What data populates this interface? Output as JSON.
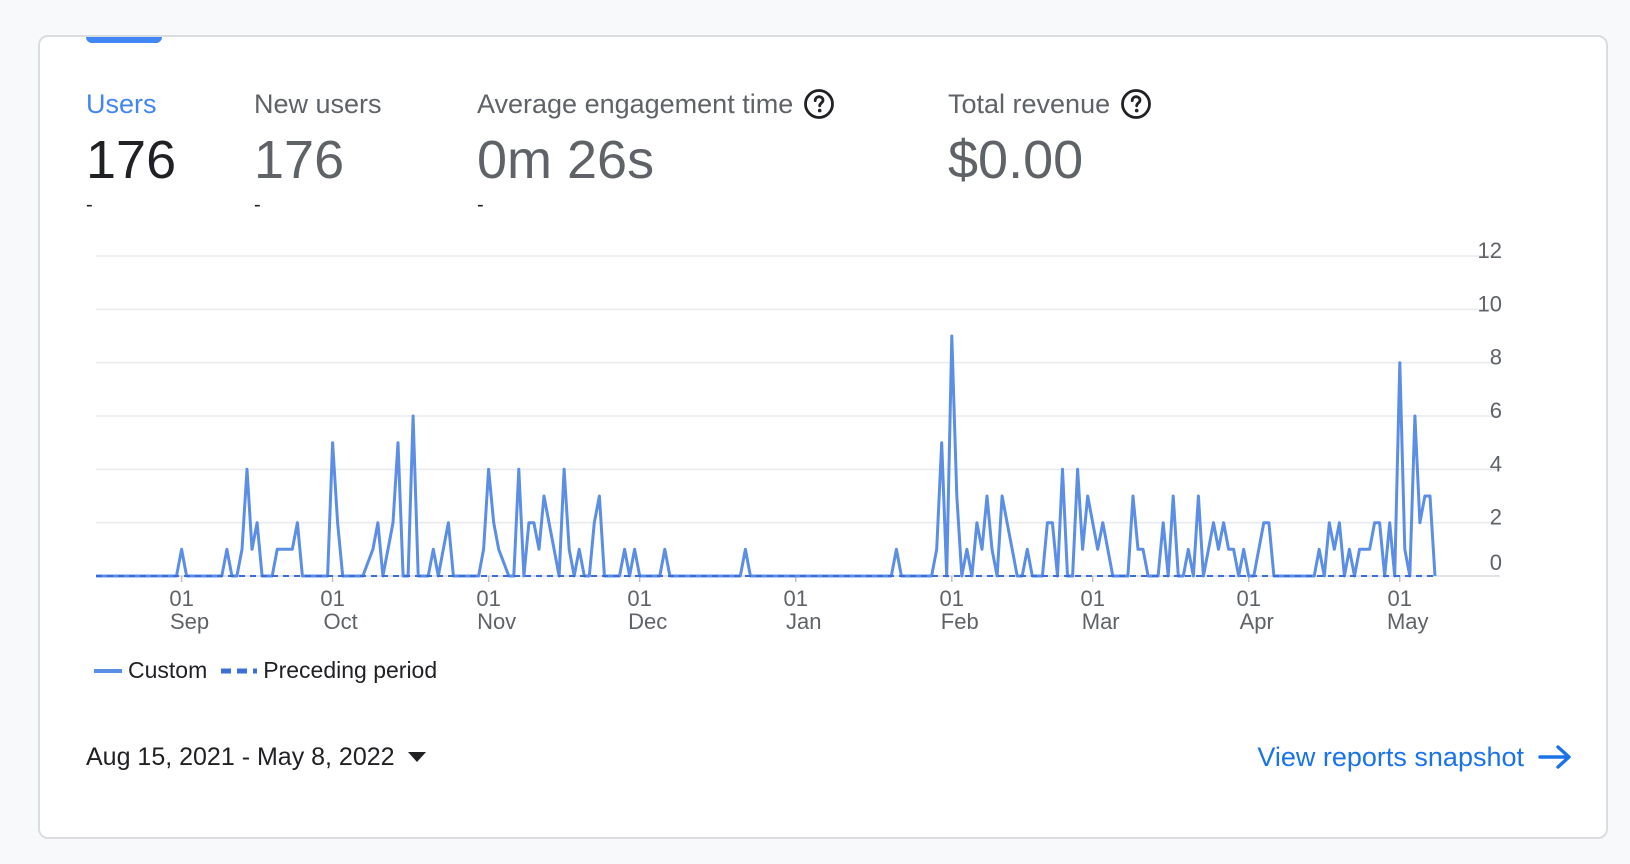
{
  "metrics": [
    {
      "label": "Users",
      "value": "176",
      "delta": "-",
      "help": false
    },
    {
      "label": "New users",
      "value": "176",
      "delta": "-",
      "help": false
    },
    {
      "label": "Average engagement time",
      "value": "0m 26s",
      "delta": "-",
      "help": true
    },
    {
      "label": "Total revenue",
      "value": "$0.00",
      "delta": "",
      "help": true
    }
  ],
  "legend": {
    "custom": "Custom",
    "preceding": "Preceding period"
  },
  "footer": {
    "date_range": "Aug 15, 2021 - May 8, 2022",
    "view_link": "View reports snapshot"
  },
  "colors": {
    "accent": "#4285f4",
    "link": "#1a73e8",
    "series": "#5b8ee6",
    "preceding": "#3b6fd6"
  },
  "icons": {
    "help": "help-circle-icon",
    "caret": "caret-down-icon",
    "arrow": "arrow-right-icon"
  },
  "chart_data": {
    "type": "line",
    "x_start": "2021-08-15",
    "x_end": "2022-05-08",
    "x_ticks": [
      {
        "date": "2021-09-01",
        "day": "01",
        "month": "Sep"
      },
      {
        "date": "2021-10-01",
        "day": "01",
        "month": "Oct"
      },
      {
        "date": "2021-11-01",
        "day": "01",
        "month": "Nov"
      },
      {
        "date": "2021-12-01",
        "day": "01",
        "month": "Dec"
      },
      {
        "date": "2022-01-01",
        "day": "01",
        "month": "Jan"
      },
      {
        "date": "2022-02-01",
        "day": "01",
        "month": "Feb"
      },
      {
        "date": "2022-03-01",
        "day": "01",
        "month": "Mar"
      },
      {
        "date": "2022-04-01",
        "day": "01",
        "month": "Apr"
      },
      {
        "date": "2022-05-01",
        "day": "01",
        "month": "May"
      }
    ],
    "y_ticks": [
      0,
      2,
      4,
      6,
      8,
      10,
      12
    ],
    "ylim": [
      0,
      12
    ],
    "grid": true,
    "legend_position": "bottom-left",
    "series": [
      {
        "name": "Custom",
        "style": "solid",
        "points": [
          [
            "2021-08-15",
            0
          ],
          [
            "2021-08-31",
            0
          ],
          [
            "2021-09-01",
            1
          ],
          [
            "2021-09-02",
            0
          ],
          [
            "2021-09-09",
            0
          ],
          [
            "2021-09-10",
            1
          ],
          [
            "2021-09-11",
            0
          ],
          [
            "2021-09-12",
            0
          ],
          [
            "2021-09-13",
            1
          ],
          [
            "2021-09-14",
            4
          ],
          [
            "2021-09-15",
            1
          ],
          [
            "2021-09-16",
            2
          ],
          [
            "2021-09-17",
            0
          ],
          [
            "2021-09-19",
            0
          ],
          [
            "2021-09-20",
            1
          ],
          [
            "2021-09-23",
            1
          ],
          [
            "2021-09-24",
            2
          ],
          [
            "2021-09-25",
            0
          ],
          [
            "2021-09-28",
            0
          ],
          [
            "2021-09-29",
            0
          ],
          [
            "2021-09-30",
            0
          ],
          [
            "2021-10-01",
            5
          ],
          [
            "2021-10-02",
            2
          ],
          [
            "2021-10-03",
            0
          ],
          [
            "2021-10-07",
            0
          ],
          [
            "2021-10-09",
            1
          ],
          [
            "2021-10-10",
            2
          ],
          [
            "2021-10-11",
            0
          ],
          [
            "2021-10-12",
            1
          ],
          [
            "2021-10-13",
            2
          ],
          [
            "2021-10-14",
            5
          ],
          [
            "2021-10-15",
            0
          ],
          [
            "2021-10-16",
            0
          ],
          [
            "2021-10-17",
            6
          ],
          [
            "2021-10-18",
            0
          ],
          [
            "2021-10-20",
            0
          ],
          [
            "2021-10-21",
            1
          ],
          [
            "2021-10-22",
            0
          ],
          [
            "2021-10-23",
            1
          ],
          [
            "2021-10-24",
            2
          ],
          [
            "2021-10-25",
            0
          ],
          [
            "2021-10-30",
            0
          ],
          [
            "2021-10-31",
            1
          ],
          [
            "2021-11-01",
            4
          ],
          [
            "2021-11-02",
            2
          ],
          [
            "2021-11-03",
            1
          ],
          [
            "2021-11-05",
            0
          ],
          [
            "2021-11-06",
            0
          ],
          [
            "2021-11-07",
            4
          ],
          [
            "2021-11-08",
            0
          ],
          [
            "2021-11-09",
            2
          ],
          [
            "2021-11-10",
            2
          ],
          [
            "2021-11-11",
            1
          ],
          [
            "2021-11-12",
            3
          ],
          [
            "2021-11-13",
            2
          ],
          [
            "2021-11-14",
            1
          ],
          [
            "2021-11-15",
            0
          ],
          [
            "2021-11-16",
            4
          ],
          [
            "2021-11-17",
            1
          ],
          [
            "2021-11-18",
            0
          ],
          [
            "2021-11-19",
            1
          ],
          [
            "2021-11-20",
            0
          ],
          [
            "2021-11-21",
            0
          ],
          [
            "2021-11-22",
            2
          ],
          [
            "2021-11-23",
            3
          ],
          [
            "2021-11-24",
            0
          ],
          [
            "2021-11-25",
            0
          ],
          [
            "2021-11-27",
            0
          ],
          [
            "2021-11-28",
            1
          ],
          [
            "2021-11-29",
            0
          ],
          [
            "2021-11-30",
            1
          ],
          [
            "2021-12-01",
            0
          ],
          [
            "2021-12-05",
            0
          ],
          [
            "2021-12-06",
            1
          ],
          [
            "2021-12-07",
            0
          ],
          [
            "2021-12-15",
            0
          ],
          [
            "2021-12-21",
            0
          ],
          [
            "2021-12-22",
            1
          ],
          [
            "2021-12-23",
            0
          ],
          [
            "2022-01-15",
            0
          ],
          [
            "2022-01-20",
            0
          ],
          [
            "2022-01-21",
            1
          ],
          [
            "2022-01-22",
            0
          ],
          [
            "2022-01-28",
            0
          ],
          [
            "2022-01-29",
            1
          ],
          [
            "2022-01-30",
            5
          ],
          [
            "2022-01-31",
            0
          ],
          [
            "2022-02-01",
            9
          ],
          [
            "2022-02-02",
            3
          ],
          [
            "2022-02-03",
            0
          ],
          [
            "2022-02-04",
            1
          ],
          [
            "2022-02-05",
            0
          ],
          [
            "2022-02-06",
            2
          ],
          [
            "2022-02-07",
            1
          ],
          [
            "2022-02-08",
            3
          ],
          [
            "2022-02-09",
            1
          ],
          [
            "2022-02-10",
            0
          ],
          [
            "2022-02-11",
            3
          ],
          [
            "2022-02-12",
            2
          ],
          [
            "2022-02-13",
            1
          ],
          [
            "2022-02-14",
            0
          ],
          [
            "2022-02-15",
            0
          ],
          [
            "2022-02-16",
            1
          ],
          [
            "2022-02-17",
            0
          ],
          [
            "2022-02-19",
            0
          ],
          [
            "2022-02-20",
            2
          ],
          [
            "2022-02-21",
            2
          ],
          [
            "2022-02-22",
            0
          ],
          [
            "2022-02-23",
            4
          ],
          [
            "2022-02-24",
            0
          ],
          [
            "2022-02-25",
            0
          ],
          [
            "2022-02-26",
            4
          ],
          [
            "2022-02-27",
            1
          ],
          [
            "2022-02-28",
            3
          ],
          [
            "2022-03-01",
            2
          ],
          [
            "2022-03-02",
            1
          ],
          [
            "2022-03-03",
            2
          ],
          [
            "2022-03-04",
            1
          ],
          [
            "2022-03-05",
            0
          ],
          [
            "2022-03-08",
            0
          ],
          [
            "2022-03-09",
            3
          ],
          [
            "2022-03-10",
            1
          ],
          [
            "2022-03-11",
            1
          ],
          [
            "2022-03-12",
            0
          ],
          [
            "2022-03-14",
            0
          ],
          [
            "2022-03-15",
            2
          ],
          [
            "2022-03-16",
            0
          ],
          [
            "2022-03-17",
            3
          ],
          [
            "2022-03-18",
            0
          ],
          [
            "2022-03-19",
            0
          ],
          [
            "2022-03-20",
            1
          ],
          [
            "2022-03-21",
            0
          ],
          [
            "2022-03-22",
            3
          ],
          [
            "2022-03-23",
            0
          ],
          [
            "2022-03-24",
            1
          ],
          [
            "2022-03-25",
            2
          ],
          [
            "2022-03-26",
            1
          ],
          [
            "2022-03-27",
            2
          ],
          [
            "2022-03-28",
            1
          ],
          [
            "2022-03-29",
            1
          ],
          [
            "2022-03-30",
            0
          ],
          [
            "2022-03-31",
            1
          ],
          [
            "2022-04-01",
            0
          ],
          [
            "2022-04-02",
            0
          ],
          [
            "2022-04-03",
            1
          ],
          [
            "2022-04-04",
            2
          ],
          [
            "2022-04-05",
            2
          ],
          [
            "2022-04-06",
            0
          ],
          [
            "2022-04-07",
            0
          ],
          [
            "2022-04-14",
            0
          ],
          [
            "2022-04-15",
            1
          ],
          [
            "2022-04-16",
            0
          ],
          [
            "2022-04-17",
            2
          ],
          [
            "2022-04-18",
            1
          ],
          [
            "2022-04-19",
            2
          ],
          [
            "2022-04-20",
            0
          ],
          [
            "2022-04-21",
            1
          ],
          [
            "2022-04-22",
            0
          ],
          [
            "2022-04-23",
            1
          ],
          [
            "2022-04-25",
            1
          ],
          [
            "2022-04-26",
            2
          ],
          [
            "2022-04-27",
            2
          ],
          [
            "2022-04-28",
            0
          ],
          [
            "2022-04-29",
            2
          ],
          [
            "2022-04-30",
            0
          ],
          [
            "2022-05-01",
            8
          ],
          [
            "2022-05-02",
            1
          ],
          [
            "2022-05-03",
            0
          ],
          [
            "2022-05-04",
            6
          ],
          [
            "2022-05-05",
            2
          ],
          [
            "2022-05-06",
            3
          ],
          [
            "2022-05-07",
            3
          ],
          [
            "2022-05-08",
            0
          ]
        ]
      },
      {
        "name": "Preceding period",
        "style": "dashed",
        "points": [
          [
            "2021-08-15",
            0
          ],
          [
            "2022-05-08",
            0
          ]
        ]
      }
    ]
  }
}
